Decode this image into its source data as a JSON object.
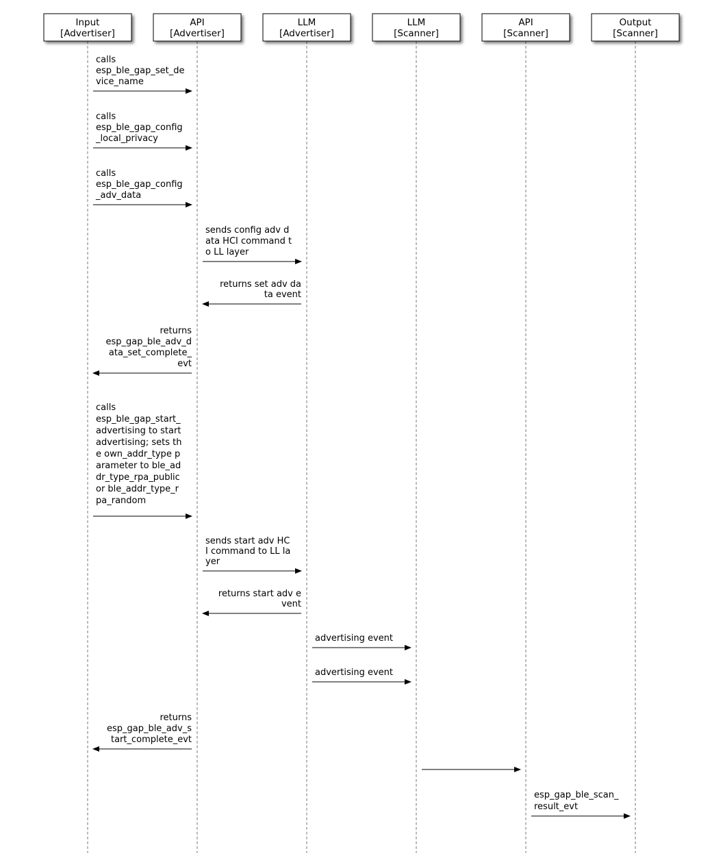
{
  "actors": [
    {
      "name": "Input",
      "role": "[Advertiser]"
    },
    {
      "name": "API",
      "role": "[Advertiser]"
    },
    {
      "name": "LLM",
      "role": "[Advertiser]"
    },
    {
      "name": "LLM",
      "role": "[Scanner]"
    },
    {
      "name": "API",
      "role": "[Scanner]"
    },
    {
      "name": "Output",
      "role": "[Scanner]"
    }
  ],
  "messages": [
    {
      "from": 0,
      "to": 1,
      "lines": [
        "calls",
        "esp_ble_gap_set_de",
        "vice_name"
      ]
    },
    {
      "from": 0,
      "to": 1,
      "lines": [
        "calls",
        "esp_ble_gap_config",
        "_local_privacy"
      ]
    },
    {
      "from": 0,
      "to": 1,
      "lines": [
        "calls",
        "esp_ble_gap_config",
        "_adv_data"
      ]
    },
    {
      "from": 1,
      "to": 2,
      "lines": [
        "sends config adv d",
        "ata HCI command t",
        "o LL layer"
      ]
    },
    {
      "from": 2,
      "to": 1,
      "lines": [
        "returns set adv da",
        "ta event"
      ]
    },
    {
      "from": 1,
      "to": 0,
      "lines": [
        "returns",
        "esp_gap_ble_adv_d",
        "ata_set_complete_",
        "evt"
      ]
    },
    {
      "from": 0,
      "to": 1,
      "lines": [
        "calls",
        "esp_ble_gap_start_",
        "advertising to start",
        "advertising; sets th",
        "e own_addr_type p",
        "arameter to ble_ad",
        "dr_type_rpa_public",
        "or ble_addr_type_r",
        "pa_random"
      ]
    },
    {
      "from": 1,
      "to": 2,
      "lines": [
        "sends start adv HC",
        "I command to LL la",
        "yer"
      ]
    },
    {
      "from": 2,
      "to": 1,
      "lines": [
        "returns start adv e",
        "vent"
      ]
    },
    {
      "from": 2,
      "to": 3,
      "lines": [
        "advertising event"
      ]
    },
    {
      "from": 2,
      "to": 3,
      "lines": [
        "advertising event"
      ]
    },
    {
      "from": 1,
      "to": 0,
      "lines": [
        "returns",
        "esp_gap_ble_adv_s",
        "tart_complete_evt"
      ]
    },
    {
      "from": 3,
      "to": 4,
      "lines": []
    },
    {
      "from": 4,
      "to": 5,
      "lines": [
        "esp_gap_ble_scan_",
        "result_evt"
      ]
    }
  ]
}
